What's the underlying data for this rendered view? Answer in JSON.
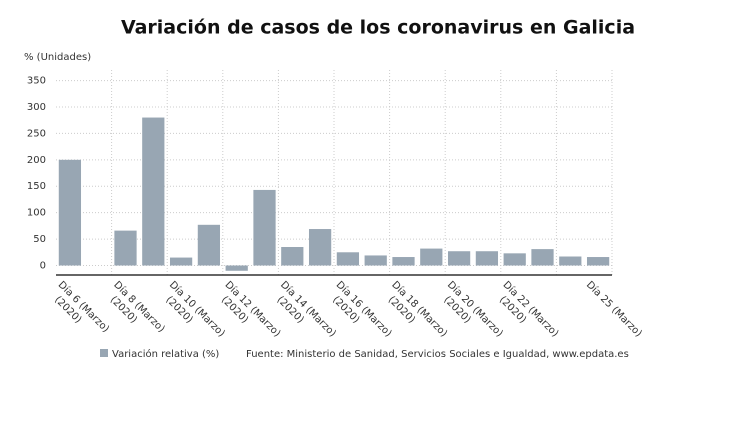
{
  "chart_data": {
    "type": "bar",
    "title": "Variación de casos de los coronavirus en Galicia",
    "y_label": "% (Unidades)",
    "categories": [
      "Día 6 (Marzo)\n(2020)",
      null,
      "Día 8 (Marzo)\n(2020)",
      null,
      "Día 10 (Marzo)\n(2020)",
      null,
      "Día 12 (Marzo)\n(2020)",
      null,
      "Día 14 (Marzo)\n(2020)",
      null,
      "Día 16 (Marzo)\n(2020)",
      null,
      "Día 18 (Marzo)\n(2020)",
      null,
      "Día 20 (Marzo)\n(2020)",
      null,
      "Día 22 (Marzo)\n(2020)",
      null,
      null,
      "Día 25 (Marzo)"
    ],
    "series": [
      {
        "name": "Variación relativa (%)",
        "color": "#98a6b3",
        "values": [
          200,
          0,
          66,
          280,
          15,
          77,
          -10,
          143,
          35,
          69,
          25,
          19,
          16,
          32,
          27,
          27,
          23,
          31,
          17,
          16
        ]
      }
    ],
    "ylim": [
      -18,
      370
    ],
    "yticks": [
      0,
      50,
      100,
      150,
      200,
      250,
      300,
      350
    ],
    "grid": true,
    "source": "Fuente: Ministerio de Sanidad, Servicios Sociales e Igualdad, www.epdata.es"
  }
}
